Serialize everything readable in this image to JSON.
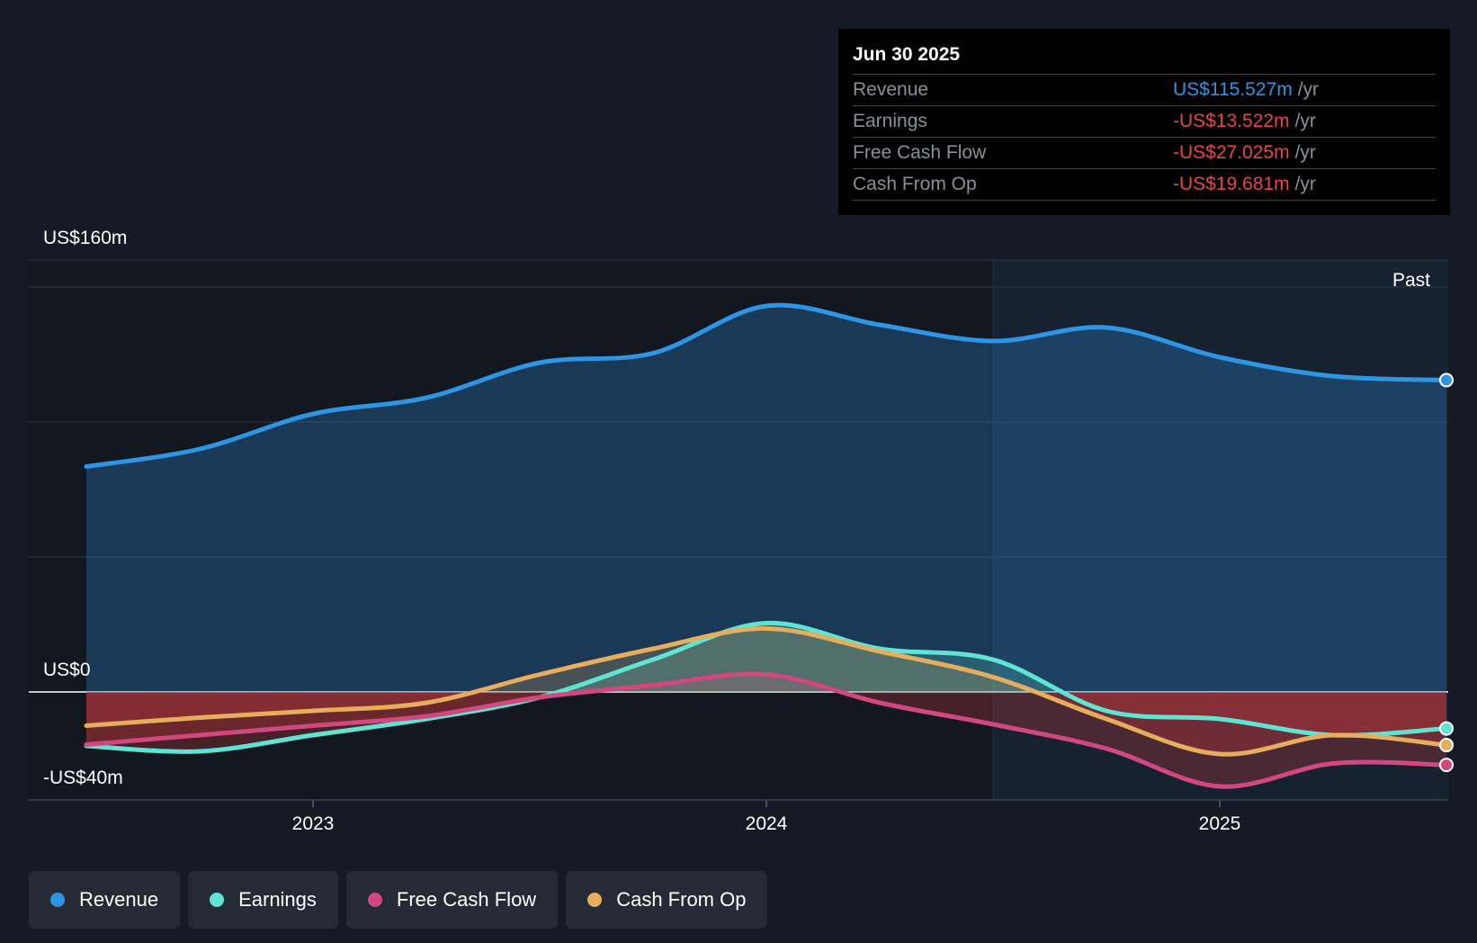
{
  "chart_data": {
    "type": "area",
    "title": "",
    "ylim": [
      -40,
      160
    ],
    "y_tick_labels": [
      "US$160m",
      "US$0",
      "-US$40m"
    ],
    "x_tick_labels": [
      "2023",
      "2024",
      "2025"
    ],
    "past_label": "Past",
    "x": [
      2022.5,
      2022.75,
      2023.0,
      2023.25,
      2023.5,
      2023.75,
      2024.0,
      2024.25,
      2024.5,
      2024.75,
      2025.0,
      2025.25,
      2025.5
    ],
    "series": [
      {
        "name": "Revenue",
        "color": "#2d95e3",
        "values": [
          83.5,
          90,
          103,
          109,
          122,
          125.5,
          143,
          136,
          130,
          135,
          124,
          117,
          115.527
        ]
      },
      {
        "name": "Earnings",
        "color": "#5fe3d2",
        "values": [
          -20,
          -22,
          -16,
          -10,
          -2,
          12,
          25.5,
          16,
          12,
          -7,
          -10,
          -16,
          -13.522
        ]
      },
      {
        "name": "Free Cash Flow",
        "color": "#d1477f",
        "values": [
          -19.5,
          -16,
          -12.5,
          -9,
          -2,
          2.5,
          6.5,
          -4,
          -12,
          -21,
          -35,
          -26.5,
          -27.025
        ]
      },
      {
        "name": "Cash From Op",
        "color": "#e6ad5c",
        "values": [
          -12.5,
          -9.5,
          -7,
          -4,
          6.5,
          16,
          23.5,
          15,
          5.5,
          -10,
          -23,
          -16,
          -19.681
        ]
      }
    ]
  },
  "tooltip": {
    "date": "Jun 30 2025",
    "rows": [
      {
        "label": "Revenue",
        "value": "US$115.527m",
        "unit": "/yr",
        "color": "#2d95e3"
      },
      {
        "label": "Earnings",
        "value": "-US$13.522m",
        "unit": "/yr",
        "color": "#e84545"
      },
      {
        "label": "Free Cash Flow",
        "value": "-US$27.025m",
        "unit": "/yr",
        "color": "#e84545"
      },
      {
        "label": "Cash From Op",
        "value": "-US$19.681m",
        "unit": "/yr",
        "color": "#e84545"
      }
    ]
  },
  "legend": [
    {
      "label": "Revenue",
      "color": "#2d95e3"
    },
    {
      "label": "Earnings",
      "color": "#5fe3d2"
    },
    {
      "label": "Free Cash Flow",
      "color": "#d1477f"
    },
    {
      "label": "Cash From Op",
      "color": "#e6ad5c"
    }
  ]
}
